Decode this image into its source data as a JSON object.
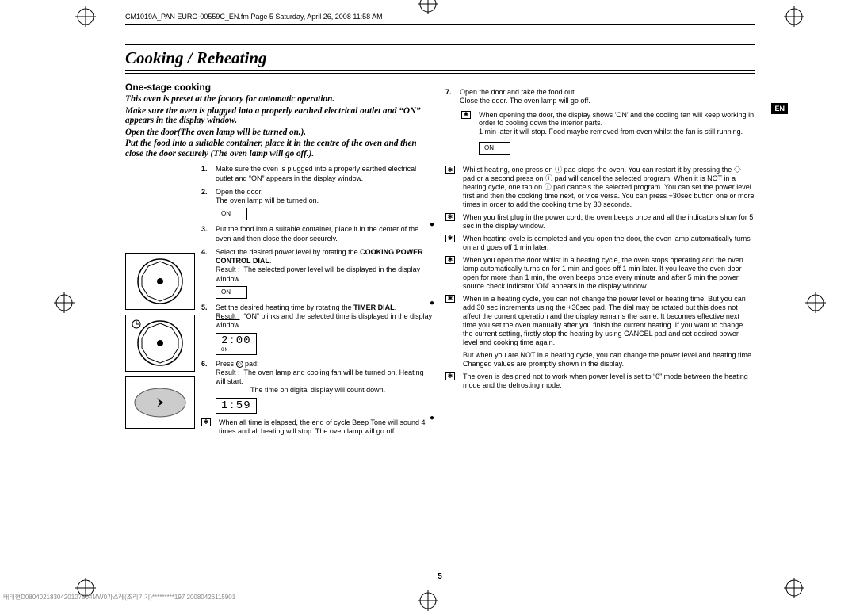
{
  "header": {
    "running": "CM1019A_PAN EURO-00559C_EN.fm  Page 5  Saturday, April 26, 2008  11:58 AM"
  },
  "title": "Cooking / Reheating",
  "badge": "EN",
  "left": {
    "subhead": "One-stage cooking",
    "intro1": "This oven is preset at the factory for automatic operation.",
    "intro2": "Make sure the oven is plugged into a properly earthed electrical outlet and “ON” appears in the display window.",
    "intro3": "Open the door(The oven lamp will be turned on.).",
    "intro4": "Put the food into a suitable container, place it in the centre of the oven and then close the door securely (The oven lamp will go off.).",
    "steps": [
      {
        "n": "1.",
        "t": "Make sure the oven is plugged into a properly earthed electrical outlet and “ON” appears in the display window."
      },
      {
        "n": "2.",
        "t": "Open the door.",
        "s": "The oven lamp will be turned on.",
        "disp": "ON"
      },
      {
        "n": "3.",
        "t": "Put the food into a suitable container, place it in the center of the oven and then close the door securely."
      },
      {
        "n": "4.",
        "t": "Select the desired power level by rotating the ",
        "b": "COOKING POWER CONTROL DIAL",
        "t2": ".",
        "r": "The selected power level will be displayed in the display window.",
        "disp": "ON"
      },
      {
        "n": "5.",
        "t": "Set the desired heating time by rotating the ",
        "b": "TIMER DIAL",
        "t2": ".",
        "r": "“ON” blinks and the selected time is displayed in the display window.",
        "disp": "2:00",
        "dsub": "ON"
      },
      {
        "n": "6.",
        "t": "Press ",
        "icon": "◇",
        "t2": " pad:",
        "r": "The oven lamp and cooling fan will be turned on. Heating will start.",
        "s2": "The time on digital display will count down.",
        "disp": "1:59"
      }
    ],
    "note1": "When all time is elapsed, the end of cycle Beep Tone will sound 4 times and all heating will stop. The oven lamp will go off."
  },
  "right": {
    "step7": {
      "n": "7.",
      "t1": "Open the door and take the food out.",
      "t2": "Close the door. The oven lamp will go off."
    },
    "notes_top": [
      "When opening the door, the display shows 'ON' and the cooling fan will keep working in order to cooling down the interior parts.",
      "1 min later it will stop. Food maybe removed from oven whilst the fan is still running."
    ],
    "disp": "ON",
    "notes": [
      "Whilst heating, one press on ⓘ pad stops the oven. You can restart it by pressing the ◇ pad or a second press on ⓘ pad will cancel the selected program. When it is NOT in a heating cycle, one tap on ⓘ pad cancels the selected program. You can set the power level first and then the cooking time next, or vice versa. You can press +30sec button one or more times in order to add the cooking time by 30 seconds.",
      "When you first plug in the power cord, the oven beeps once and all the indicators show for 5 sec in the display window.",
      "When heating cycle is completed and you open the door, the oven lamp automatically turns on and goes off 1 min later.",
      "When you open the door whilst in a heating cycle, the oven stops operating and the oven lamp automatically turns on for 1 min and goes off 1 min later. If you leave the oven door open for more than 1 min, the oven beeps once every minute and after 5 min the power source check indicator 'ON' appears in the display window.",
      "When in a heating cycle, you can not change the power level or heating time. But you can add 30 sec increments using the +30sec pad. The dial may be rotated but this does not affect the current operation and the display remains the same. It becomes effective next time you set the oven manually after you finish the current heating. If you want to change the current setting, firstly stop the heating by using CANCEL pad and set desired power level and cooking time again.",
      "But when you are NOT in a heating cycle, you can change the power level and heating time. Changed values are promptly shown in the display.",
      "The oven is designed not to work when power level is set to “0” mode between the heating mode and the defrosting mode."
    ]
  },
  "pagenum": "5",
  "footer": "배태현D0804021830420107504MW0가스레(조리기기)*********197 20080426115901"
}
